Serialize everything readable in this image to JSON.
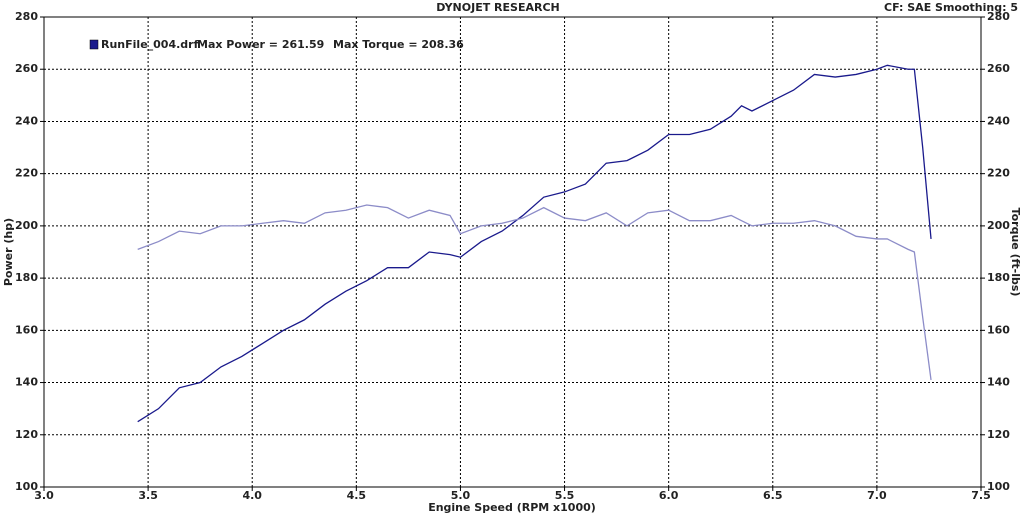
{
  "chart_data": {
    "type": "line",
    "title": "DYNOJET RESEARCH",
    "subtitle": "CF: SAE  Smoothing: 5",
    "x_label": "Engine Speed (RPM x1000)",
    "y_label": "Power (hp)",
    "y2_label": "Torque (ft-lbs)",
    "legend": {
      "file": "RunFile_004.drf",
      "max_power": "Max Power = 261.59",
      "max_torque": "Max Torque = 208.36"
    },
    "legend_color": "#1a1a8c",
    "grid": true,
    "xlim": [
      3.0,
      7.5
    ],
    "xticks": [
      {
        "value": 3.0,
        "label": "3.0"
      },
      3.5,
      {
        "value": 4.0,
        "label": "4.0"
      },
      4.5,
      {
        "value": 5.0,
        "label": "5.0"
      },
      5.5,
      {
        "value": 6.0,
        "label": "6.0"
      },
      6.5,
      {
        "value": 7.0,
        "label": "7.0"
      },
      7.5
    ],
    "ylim": [
      100,
      280
    ],
    "yticks": [
      100,
      120,
      140,
      160,
      180,
      200,
      220,
      240,
      260,
      280
    ],
    "y2lim": [
      100,
      280
    ],
    "y2ticks": [
      100,
      120,
      140,
      160,
      180,
      200,
      220,
      240,
      260,
      280
    ],
    "x": [
      3.45,
      3.55,
      3.65,
      3.75,
      3.85,
      3.95,
      4.05,
      4.15,
      4.25,
      4.35,
      4.45,
      4.55,
      4.65,
      4.75,
      4.85,
      4.95,
      5.0,
      5.1,
      5.2,
      5.3,
      5.4,
      5.5,
      5.6,
      5.7,
      5.8,
      5.9,
      6.0,
      6.1,
      6.2,
      6.3,
      6.35,
      6.4,
      6.5,
      6.6,
      6.7,
      6.8,
      6.9,
      7.0,
      7.05,
      7.15,
      7.18,
      7.22,
      7.26
    ],
    "series": [
      {
        "color": "#1a1a8c",
        "axis": "y",
        "values": [
          125,
          130,
          138,
          140,
          146,
          150,
          155,
          160,
          164,
          170,
          175,
          179,
          184,
          184,
          190,
          189,
          188,
          194,
          198,
          204,
          211,
          213,
          216,
          224,
          225,
          229,
          235,
          235,
          237,
          242,
          246,
          244,
          248,
          252,
          258,
          257,
          258,
          260,
          261.5,
          260,
          260,
          230,
          195
        ]
      },
      {
        "color": "#8c8cc8",
        "axis": "y2",
        "values": [
          191,
          194,
          198,
          197,
          200,
          200,
          201,
          202,
          201,
          205,
          206,
          208,
          207,
          203,
          206,
          204,
          197,
          200,
          201,
          203,
          207,
          203,
          202,
          205,
          200,
          205,
          206,
          202,
          202,
          204,
          202,
          200,
          201,
          201,
          202,
          200,
          196,
          195,
          195,
          191,
          190,
          165,
          141
        ]
      }
    ]
  }
}
